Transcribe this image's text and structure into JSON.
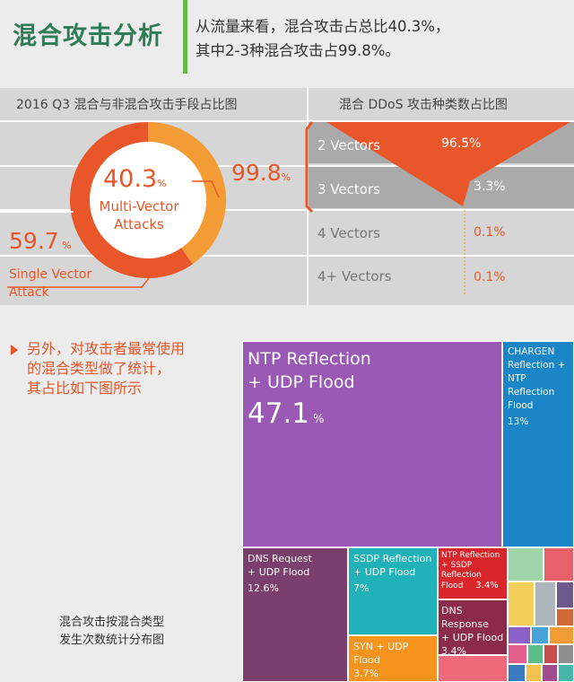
{
  "header": {
    "title": "混合攻击分析",
    "summary_line1": "从流量来看，混合攻击占总比40.3%，",
    "summary_line2": "其中2-3种混合攻击占99.8%。"
  },
  "left_panel": {
    "title": "2016 Q3 混合与非混合攻击手段占比图"
  },
  "right_panel": {
    "title": "混合 DDoS 攻击种类数占比图"
  },
  "donut": {
    "multi_value": "40.3",
    "multi_label1": "Multi-Vector",
    "multi_label2": "Attacks",
    "single_value": "59.7",
    "single_label1": "Single Vector",
    "single_label2": "Attack",
    "pct_sign": "%",
    "callout_value": "99.8",
    "callout_pct": "%"
  },
  "vectors": [
    {
      "label": "2 Vectors",
      "pct": "96.5%"
    },
    {
      "label": "3 Vectors",
      "pct": "3.3%"
    },
    {
      "label": "4 Vectors",
      "pct": "0.1%"
    },
    {
      "label": "4+ Vectors",
      "pct": "0.1%"
    }
  ],
  "bottom": {
    "line1": "另外，对攻击者最常使用",
    "line2": "的混合类型做了统计，",
    "line3": "其占比如下图所示",
    "caption1": "混合攻击按混合类型",
    "caption2": "发生次数统计分布图"
  },
  "treemap": {
    "ntp_l1": "NTP Reflection",
    "ntp_l2": "+ UDP Flood",
    "ntp_value": "47.1",
    "ntp_pct": "%",
    "chargen_l1": "CHARGEN",
    "chargen_l2": "Reflection +",
    "chargen_l3": "NTP",
    "chargen_l4": "Reflection",
    "chargen_l5": "Flood",
    "chargen_pct": "13%",
    "dnsreq_l1": "DNS Request",
    "dnsreq_l2": "+ UDP Flood",
    "dnsreq_pct": "12.6%",
    "ssdp_l1": "SSDP Reflection",
    "ssdp_l2": "+ UDP Flood",
    "ssdp_pct": "7%",
    "syn_l1": "SYN + UDP",
    "syn_l2": "Flood",
    "syn_pct": "3.7%",
    "ntpssdp_l1": "NTP Reflection",
    "ntpssdp_l2": "+ SSDP",
    "ntpssdp_l3": "Reflection",
    "ntpssdp_l4": "Flood",
    "ntpssdp_pct": "3.4%",
    "dnsresp_l1": "DNS",
    "dnsresp_l2": "Response",
    "dnsresp_l3": "+ UDP Flood",
    "dnsresp_pct": "3.4%"
  },
  "colors": {
    "orange": "#e8562a",
    "light_orange": "#f39b34",
    "purple": "#9b59b6",
    "blue": "#1b86c7",
    "plum": "#7b3f6e",
    "teal": "#20b2b8",
    "amber": "#f7941d",
    "red": "#d9262b",
    "maroon": "#8c2a4a",
    "green": "#2e7d57"
  },
  "chart_data": [
    {
      "type": "pie",
      "title": "2016 Q3 混合与非混合攻击手段占比图",
      "categories": [
        "Multi-Vector Attacks",
        "Single Vector Attack"
      ],
      "values": [
        40.3,
        59.7
      ]
    },
    {
      "type": "bar",
      "title": "混合 DDoS 攻击种类数占比图",
      "categories": [
        "2 Vectors",
        "3 Vectors",
        "4 Vectors",
        "4+ Vectors"
      ],
      "values": [
        96.5,
        3.3,
        0.1,
        0.1
      ]
    },
    {
      "type": "heatmap",
      "title": "混合攻击按混合类型发生次数统计分布图",
      "categories": [
        "NTP Reflection + UDP Flood",
        "CHARGEN Reflection + NTP Reflection Flood",
        "DNS Request + UDP Flood",
        "SSDP Reflection + UDP Flood",
        "SYN + UDP Flood",
        "NTP Reflection + SSDP Reflection Flood",
        "DNS Response + UDP Flood"
      ],
      "values": [
        47.1,
        13,
        12.6,
        7,
        3.7,
        3.4,
        3.4
      ]
    }
  ]
}
